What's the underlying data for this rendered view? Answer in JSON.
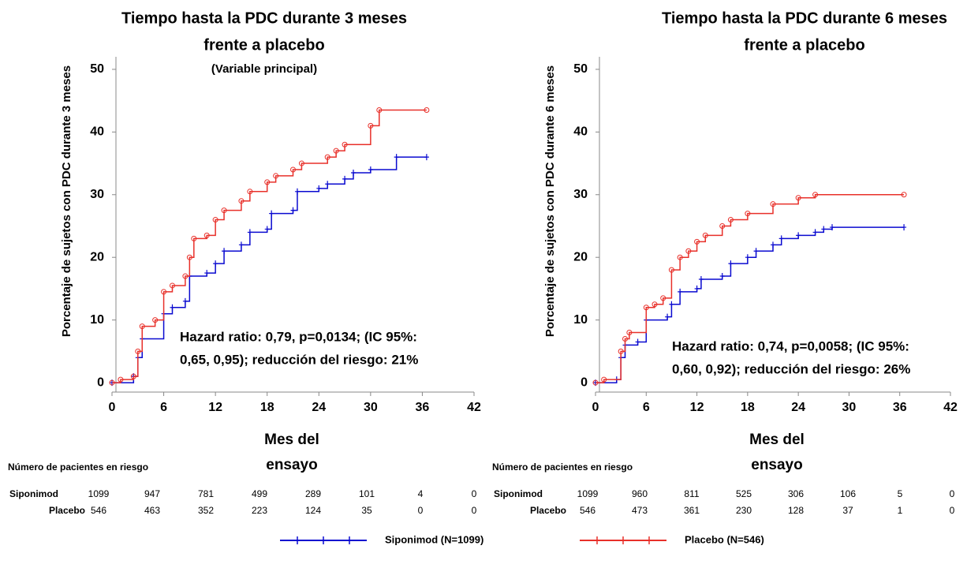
{
  "chart_data": [
    {
      "type": "line",
      "step": true,
      "title": [
        "Tiempo hasta la PDC durante 3 meses",
        "frente a placebo"
      ],
      "subtitle": "(Variable principal)",
      "ylabel": "Porcentaje de sujetos con PDC durante 3 meses",
      "xlabel": [
        "Mes del",
        "ensayo"
      ],
      "annotation": [
        "Hazard ratio: 0,79, p=0,0134; (IC 95%:",
        "0,65, 0,95); reducción del riesgo: 21%"
      ],
      "xlim": [
        0,
        42
      ],
      "xticks": [
        0,
        6,
        12,
        18,
        24,
        30,
        36,
        42
      ],
      "ylim": [
        -1.5,
        52
      ],
      "yticks": [
        0,
        10,
        20,
        30,
        40,
        50
      ],
      "series": [
        {
          "name": "Siponimod (N=1099)",
          "color": "#0a0ad0",
          "marker": "plus",
          "x": [
            0,
            2.5,
            3,
            3.5,
            6,
            7,
            8.5,
            9,
            11,
            12,
            13,
            15,
            16,
            18,
            18.5,
            21,
            21.5,
            24,
            25,
            27,
            28,
            30,
            33,
            36.5
          ],
          "values": [
            0,
            1,
            4,
            7,
            11,
            12,
            13,
            17,
            17.5,
            19,
            21,
            22,
            24,
            24.5,
            27,
            27.5,
            30.5,
            31,
            31.7,
            32.5,
            33.5,
            34,
            36,
            36
          ]
        },
        {
          "name": "Placebo (N=546)",
          "color": "#e8302a",
          "marker": "circle",
          "x": [
            0,
            1,
            2.5,
            3,
            3.5,
            5,
            6,
            7,
            8.5,
            9,
            9.5,
            11,
            12,
            13,
            15,
            16,
            18,
            19,
            21,
            22,
            25,
            26,
            27,
            30,
            31,
            36.5
          ],
          "values": [
            0,
            0.5,
            1,
            5,
            9,
            10,
            14.5,
            15.5,
            17,
            20,
            23,
            23.5,
            26,
            27.5,
            29,
            30.5,
            32,
            33,
            34,
            35,
            36,
            37,
            38,
            41,
            43.5,
            43.5
          ]
        }
      ],
      "risk_table": {
        "title": "Número de pacientes en riesgo",
        "rows": [
          {
            "label": "Siponimod",
            "values": [
              1099,
              947,
              781,
              499,
              289,
              101,
              4,
              0
            ]
          },
          {
            "label": "Placebo",
            "values": [
              546,
              463,
              352,
              223,
              124,
              35,
              0,
              0
            ]
          }
        ]
      }
    },
    {
      "type": "line",
      "step": true,
      "title": [
        "Tiempo hasta la PDC durante 6 meses",
        "frente a placebo"
      ],
      "ylabel": "Porcentaje de sujetos con PDC durante 6 meses",
      "xlabel": [
        "Mes del",
        "ensayo"
      ],
      "annotation": [
        "Hazard ratio: 0,74, p=0,0058; (IC 95%:",
        "0,60, 0,92); reducción del riesgo: 26%"
      ],
      "xlim": [
        0,
        42
      ],
      "xticks": [
        0,
        6,
        12,
        18,
        24,
        30,
        36,
        42
      ],
      "ylim": [
        -1.5,
        52
      ],
      "yticks": [
        0,
        10,
        20,
        30,
        40,
        50
      ],
      "series": [
        {
          "name": "Siponimod (N=1099)",
          "color": "#0a0ad0",
          "marker": "plus",
          "x": [
            0,
            2.5,
            3,
            3.5,
            5,
            6,
            8.5,
            9,
            10,
            12,
            12.5,
            15,
            16,
            18,
            19,
            21,
            22,
            24,
            26,
            27,
            28,
            36.5
          ],
          "values": [
            0,
            0.5,
            4,
            6,
            6.5,
            10,
            10.5,
            12.5,
            14.5,
            15,
            16.5,
            17,
            19,
            20,
            21,
            22,
            23,
            23.5,
            24,
            24.5,
            24.8,
            24.8
          ]
        },
        {
          "name": "Placebo (N=546)",
          "color": "#e8302a",
          "marker": "circle",
          "x": [
            0,
            1,
            3,
            3.5,
            4,
            6,
            7,
            8,
            9,
            10,
            11,
            12,
            13,
            15,
            16,
            18,
            21,
            24,
            26,
            36.5
          ],
          "values": [
            0,
            0.5,
            5,
            7,
            8,
            12,
            12.5,
            13.5,
            18,
            20,
            21,
            22.5,
            23.5,
            25,
            26,
            27,
            28.5,
            29.5,
            30,
            30
          ]
        }
      ],
      "risk_table": {
        "title": "Número de pacientes en riesgo",
        "rows": [
          {
            "label": "Siponimod",
            "values": [
              1099,
              960,
              811,
              525,
              306,
              106,
              5,
              0
            ]
          },
          {
            "label": "Placebo",
            "values": [
              546,
              473,
              361,
              230,
              128,
              37,
              1,
              0
            ]
          }
        ]
      }
    }
  ]
}
